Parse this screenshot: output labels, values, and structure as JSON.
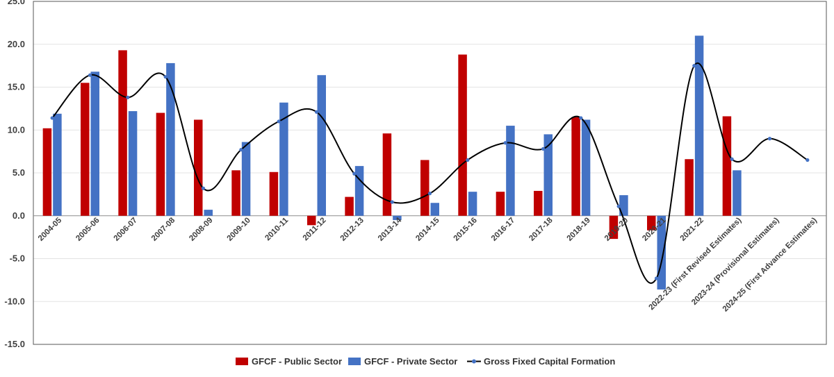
{
  "chart_data": {
    "type": "bar",
    "categories": [
      "2004-05",
      "2005-06",
      "2006-07",
      "2007-08",
      "2008-09",
      "2009-10",
      "2010-11",
      "2011-12",
      "2012-13",
      "2013-14",
      "2014-15",
      "2015-16",
      "2016-17",
      "2017-18",
      "2018-19",
      "2019-20",
      "2020-21",
      "2021-22",
      "2022-23 (First Revised Estimates)",
      "2023-24 (Provisional Estimates)",
      "2024-25 (First Advance Estimates)"
    ],
    "series": [
      {
        "name": "GFCF - Public Sector",
        "kind": "bar",
        "color": "#C00000",
        "values": [
          10.2,
          15.5,
          19.3,
          12.0,
          11.2,
          5.3,
          5.1,
          -1.1,
          2.2,
          9.6,
          6.5,
          18.8,
          2.8,
          2.9,
          11.5,
          -2.7,
          -1.7,
          6.6,
          11.6,
          null,
          null
        ]
      },
      {
        "name": "GFCF - Private Sector",
        "kind": "bar",
        "color": "#4472C4",
        "values": [
          11.9,
          16.8,
          12.2,
          17.8,
          0.7,
          8.6,
          13.2,
          16.4,
          5.8,
          -0.5,
          1.5,
          2.8,
          10.5,
          9.5,
          11.2,
          2.4,
          -8.6,
          21.0,
          5.3,
          null,
          null
        ]
      },
      {
        "name": "Gross Fixed Capital Formation",
        "kind": "line",
        "color": "#000000",
        "marker_color": "#4472C4",
        "values": [
          11.4,
          16.4,
          13.8,
          16.2,
          3.2,
          7.7,
          11.0,
          12.1,
          4.9,
          1.6,
          2.6,
          6.5,
          8.5,
          7.8,
          11.4,
          1.1,
          -7.3,
          17.5,
          6.6,
          9.0,
          6.5
        ]
      }
    ],
    "ylim": [
      -15,
      25
    ],
    "yticks": [
      "-15.0",
      "-10.0",
      "-5.0",
      "0.0",
      "5.0",
      "10.0",
      "15.0",
      "20.0",
      "25.0"
    ],
    "grid": true,
    "legend_position": "bottom",
    "xlabel": "",
    "ylabel": ""
  }
}
